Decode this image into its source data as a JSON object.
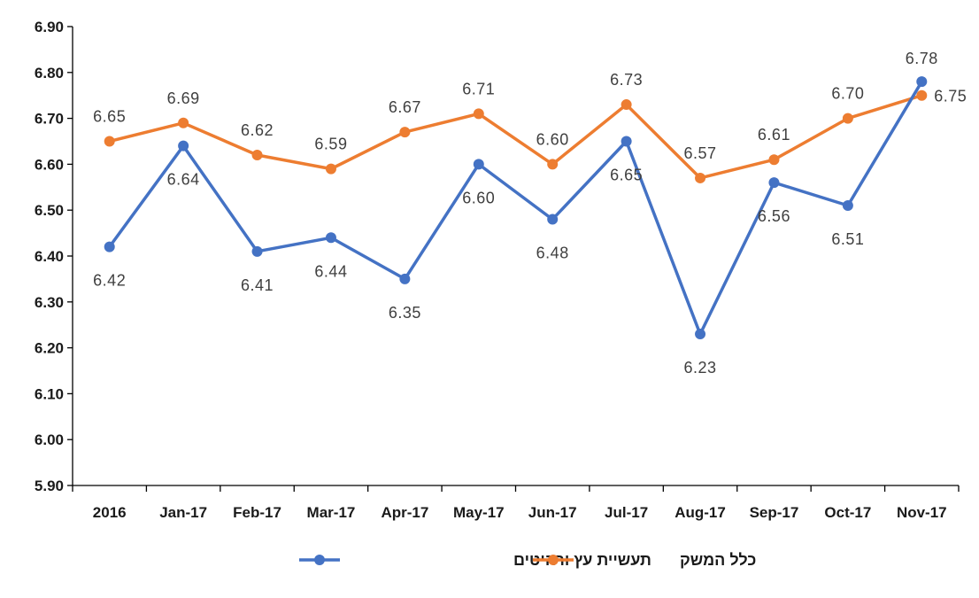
{
  "chart_data": {
    "type": "line",
    "categories": [
      "2016",
      "Jan-17",
      "Feb-17",
      "Mar-17",
      "Apr-17",
      "May-17",
      "Jun-17",
      "Jul-17",
      "Aug-17",
      "Sep-17",
      "Oct-17",
      "Nov-17"
    ],
    "ylim": [
      5.9,
      6.9
    ],
    "yticks": [
      "5.90",
      "6.00",
      "6.10",
      "6.20",
      "6.30",
      "6.40",
      "6.50",
      "6.60",
      "6.70",
      "6.80",
      "6.90"
    ],
    "grid": false,
    "legend_position": "bottom",
    "series": [
      {
        "name": "תעשיית עץ ורהיטים",
        "color": "#4472C4",
        "values": [
          6.42,
          6.64,
          6.41,
          6.44,
          6.35,
          6.6,
          6.48,
          6.65,
          6.23,
          6.56,
          6.51,
          6.78
        ],
        "labels": [
          "6.42",
          "6.64",
          "6.41",
          "6.44",
          "6.35",
          "6.60",
          "6.48",
          "6.65",
          "6.23",
          "6.56",
          "6.51",
          "6.78"
        ]
      },
      {
        "name": "כלל המשק",
        "color": "#ED7D31",
        "values": [
          6.65,
          6.69,
          6.62,
          6.59,
          6.67,
          6.71,
          6.6,
          6.73,
          6.57,
          6.61,
          6.7,
          6.75
        ],
        "labels": [
          "6.65",
          "6.69",
          "6.62",
          "6.59",
          "6.67",
          "6.71",
          "6.60",
          "6.73",
          "6.57",
          "6.61",
          "6.70",
          "6.75"
        ]
      }
    ]
  }
}
